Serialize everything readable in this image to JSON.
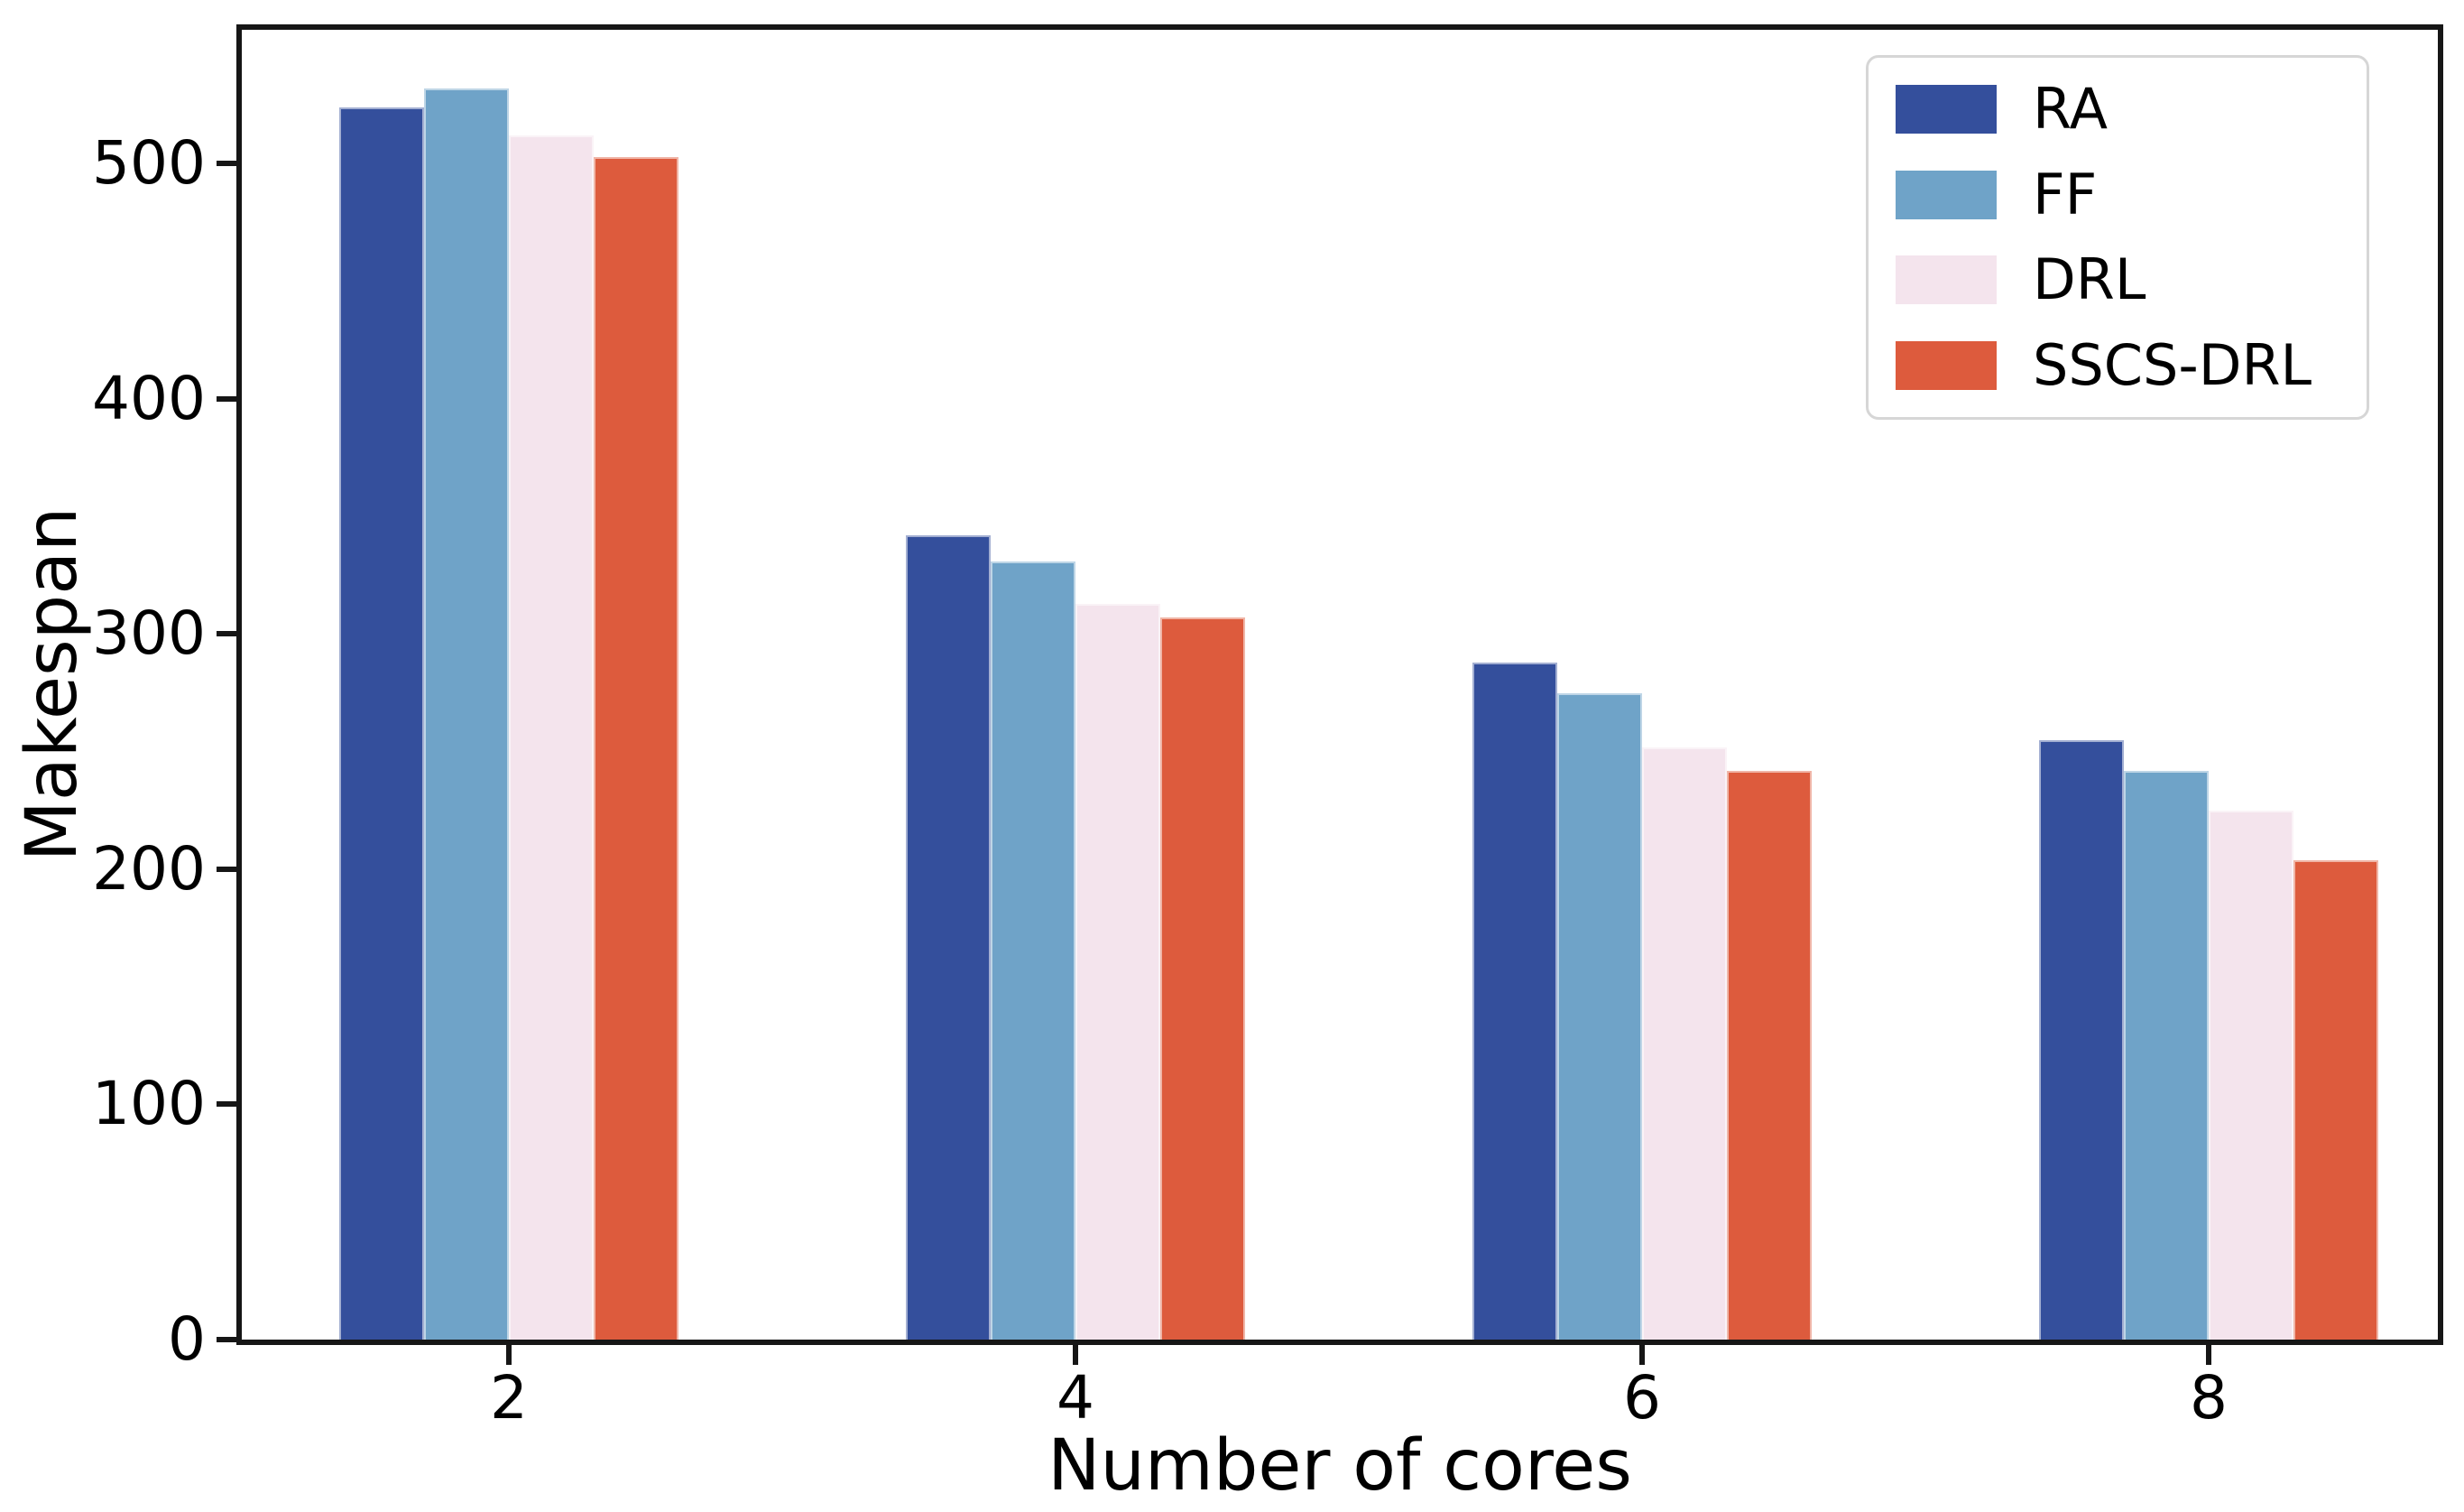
{
  "chart_data": {
    "type": "bar",
    "title": "",
    "xlabel": "Number of cores",
    "ylabel": "Makespan",
    "categories": [
      "2",
      "4",
      "6",
      "8"
    ],
    "series": [
      {
        "name": "RA",
        "color": "#344f9c",
        "values": [
          524,
          342,
          288,
          255
        ]
      },
      {
        "name": "FF",
        "color": "#6fa3c8",
        "values": [
          532,
          331,
          275,
          242
        ]
      },
      {
        "name": "DRL",
        "color": "#f4e4ed",
        "values": [
          512,
          313,
          252,
          225
        ]
      },
      {
        "name": "SSCS-DRL",
        "color": "#dd5b3d",
        "values": [
          503,
          307,
          242,
          204
        ]
      }
    ],
    "y_ticks": [
      0,
      100,
      200,
      300,
      400,
      500
    ],
    "ylim": [
      0,
      557
    ],
    "grid": false,
    "legend_position": "upper right",
    "spine_color": "#161616",
    "background_color": "#ffffff"
  }
}
